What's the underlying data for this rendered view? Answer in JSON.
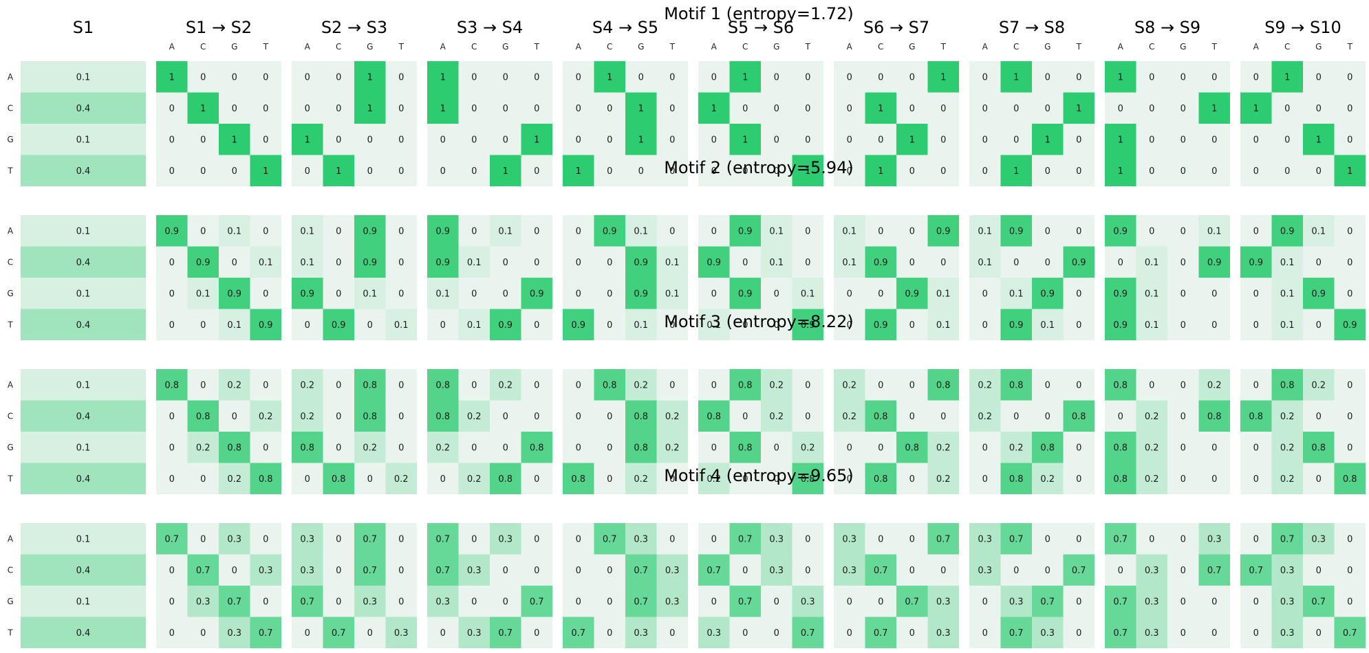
{
  "chart_data": {
    "type": "heatmap",
    "nucleotides": [
      "A",
      "C",
      "G",
      "T"
    ],
    "panel_titles": [
      "S1",
      "S1 → S2",
      "S2 → S3",
      "S3 → S4",
      "S4 → S5",
      "S5 → S6",
      "S6 → S7",
      "S7 → S8",
      "S8 → S9",
      "S9 → S10"
    ],
    "colors": {
      "low": "#eaf4ee",
      "high": "#2ecc71"
    },
    "motifs": [
      {
        "title": "Motif 1 (entropy=1.72)",
        "initial": [
          0.1,
          0.4,
          0.1,
          0.4
        ],
        "transitions": [
          [
            [
              1,
              0,
              0,
              0
            ],
            [
              0,
              1,
              0,
              0
            ],
            [
              0,
              0,
              1,
              0
            ],
            [
              0,
              0,
              0,
              1
            ]
          ],
          [
            [
              0,
              0,
              1,
              0
            ],
            [
              0,
              0,
              1,
              0
            ],
            [
              1,
              0,
              0,
              0
            ],
            [
              0,
              1,
              0,
              0
            ]
          ],
          [
            [
              1,
              0,
              0,
              0
            ],
            [
              1,
              0,
              0,
              0
            ],
            [
              0,
              0,
              0,
              1
            ],
            [
              0,
              0,
              1,
              0
            ]
          ],
          [
            [
              0,
              1,
              0,
              0
            ],
            [
              0,
              0,
              1,
              0
            ],
            [
              0,
              0,
              1,
              0
            ],
            [
              1,
              0,
              0,
              0
            ]
          ],
          [
            [
              0,
              1,
              0,
              0
            ],
            [
              1,
              0,
              0,
              0
            ],
            [
              0,
              1,
              0,
              0
            ],
            [
              0,
              0,
              0,
              1
            ]
          ],
          [
            [
              0,
              0,
              0,
              1
            ],
            [
              0,
              1,
              0,
              0
            ],
            [
              0,
              0,
              1,
              0
            ],
            [
              0,
              1,
              0,
              0
            ]
          ],
          [
            [
              0,
              1,
              0,
              0
            ],
            [
              0,
              0,
              0,
              1
            ],
            [
              0,
              0,
              1,
              0
            ],
            [
              0,
              1,
              0,
              0
            ]
          ],
          [
            [
              1,
              0,
              0,
              0
            ],
            [
              0,
              0,
              0,
              1
            ],
            [
              1,
              0,
              0,
              0
            ],
            [
              1,
              0,
              0,
              0
            ]
          ],
          [
            [
              0,
              1,
              0,
              0
            ],
            [
              1,
              0,
              0,
              0
            ],
            [
              0,
              0,
              1,
              0
            ],
            [
              0,
              0,
              0,
              1
            ]
          ]
        ]
      },
      {
        "title": "Motif 2 (entropy=5.94)",
        "initial": [
          0.1,
          0.4,
          0.1,
          0.4
        ],
        "transitions": [
          [
            [
              0.9,
              0,
              0.1,
              0
            ],
            [
              0,
              0.9,
              0,
              0.1
            ],
            [
              0,
              0.1,
              0.9,
              0
            ],
            [
              0,
              0,
              0.1,
              0.9
            ]
          ],
          [
            [
              0.1,
              0,
              0.9,
              0
            ],
            [
              0.1,
              0,
              0.9,
              0
            ],
            [
              0.9,
              0,
              0.1,
              0
            ],
            [
              0,
              0.9,
              0,
              0.1
            ]
          ],
          [
            [
              0.9,
              0,
              0.1,
              0
            ],
            [
              0.9,
              0.1,
              0,
              0
            ],
            [
              0.1,
              0,
              0,
              0.9
            ],
            [
              0,
              0.1,
              0.9,
              0
            ]
          ],
          [
            [
              0,
              0.9,
              0.1,
              0
            ],
            [
              0,
              0,
              0.9,
              0.1
            ],
            [
              0,
              0,
              0.9,
              0.1
            ],
            [
              0.9,
              0,
              0.1,
              0
            ]
          ],
          [
            [
              0,
              0.9,
              0.1,
              0
            ],
            [
              0.9,
              0,
              0.1,
              0
            ],
            [
              0,
              0.9,
              0,
              0.1
            ],
            [
              0.1,
              0,
              0,
              0.9
            ]
          ],
          [
            [
              0.1,
              0,
              0,
              0.9
            ],
            [
              0.1,
              0.9,
              0,
              0
            ],
            [
              0,
              0,
              0.9,
              0.1
            ],
            [
              0,
              0.9,
              0,
              0.1
            ]
          ],
          [
            [
              0.1,
              0.9,
              0,
              0
            ],
            [
              0.1,
              0,
              0,
              0.9
            ],
            [
              0,
              0.1,
              0.9,
              0
            ],
            [
              0,
              0.9,
              0.1,
              0
            ]
          ],
          [
            [
              0.9,
              0,
              0,
              0.1
            ],
            [
              0,
              0.1,
              0,
              0.9
            ],
            [
              0.9,
              0.1,
              0,
              0
            ],
            [
              0.9,
              0.1,
              0,
              0
            ]
          ],
          [
            [
              0,
              0.9,
              0.1,
              0
            ],
            [
              0.9,
              0.1,
              0,
              0
            ],
            [
              0,
              0.1,
              0.9,
              0
            ],
            [
              0,
              0.1,
              0,
              0.9
            ]
          ]
        ]
      },
      {
        "title": "Motif 3 (entropy=8.22)",
        "initial": [
          0.1,
          0.4,
          0.1,
          0.4
        ],
        "transitions": [
          [
            [
              0.8,
              0,
              0.2,
              0
            ],
            [
              0,
              0.8,
              0,
              0.2
            ],
            [
              0,
              0.2,
              0.8,
              0
            ],
            [
              0,
              0,
              0.2,
              0.8
            ]
          ],
          [
            [
              0.2,
              0,
              0.8,
              0
            ],
            [
              0.2,
              0,
              0.8,
              0
            ],
            [
              0.8,
              0,
              0.2,
              0
            ],
            [
              0,
              0.8,
              0,
              0.2
            ]
          ],
          [
            [
              0.8,
              0,
              0.2,
              0
            ],
            [
              0.8,
              0.2,
              0,
              0
            ],
            [
              0.2,
              0,
              0,
              0.8
            ],
            [
              0,
              0.2,
              0.8,
              0
            ]
          ],
          [
            [
              0,
              0.8,
              0.2,
              0
            ],
            [
              0,
              0,
              0.8,
              0.2
            ],
            [
              0,
              0,
              0.8,
              0.2
            ],
            [
              0.8,
              0,
              0.2,
              0
            ]
          ],
          [
            [
              0,
              0.8,
              0.2,
              0
            ],
            [
              0.8,
              0,
              0.2,
              0
            ],
            [
              0,
              0.8,
              0,
              0.2
            ],
            [
              0.2,
              0,
              0,
              0.8
            ]
          ],
          [
            [
              0.2,
              0,
              0,
              0.8
            ],
            [
              0.2,
              0.8,
              0,
              0
            ],
            [
              0,
              0,
              0.8,
              0.2
            ],
            [
              0,
              0.8,
              0,
              0.2
            ]
          ],
          [
            [
              0.2,
              0.8,
              0,
              0
            ],
            [
              0.2,
              0,
              0,
              0.8
            ],
            [
              0,
              0.2,
              0.8,
              0
            ],
            [
              0,
              0.8,
              0.2,
              0
            ]
          ],
          [
            [
              0.8,
              0,
              0,
              0.2
            ],
            [
              0,
              0.2,
              0,
              0.8
            ],
            [
              0.8,
              0.2,
              0,
              0
            ],
            [
              0.8,
              0.2,
              0,
              0
            ]
          ],
          [
            [
              0,
              0.8,
              0.2,
              0
            ],
            [
              0.8,
              0.2,
              0,
              0
            ],
            [
              0,
              0.2,
              0.8,
              0
            ],
            [
              0,
              0.2,
              0,
              0.8
            ]
          ]
        ]
      },
      {
        "title": "Motif 4 (entropy=9.65)",
        "initial": [
          0.1,
          0.4,
          0.1,
          0.4
        ],
        "transitions": [
          [
            [
              0.7,
              0,
              0.3,
              0
            ],
            [
              0,
              0.7,
              0,
              0.3
            ],
            [
              0,
              0.3,
              0.7,
              0
            ],
            [
              0,
              0,
              0.3,
              0.7
            ]
          ],
          [
            [
              0.3,
              0,
              0.7,
              0
            ],
            [
              0.3,
              0,
              0.7,
              0
            ],
            [
              0.7,
              0,
              0.3,
              0
            ],
            [
              0,
              0.7,
              0,
              0.3
            ]
          ],
          [
            [
              0.7,
              0,
              0.3,
              0
            ],
            [
              0.7,
              0.3,
              0,
              0
            ],
            [
              0.3,
              0,
              0,
              0.7
            ],
            [
              0,
              0.3,
              0.7,
              0
            ]
          ],
          [
            [
              0,
              0.7,
              0.3,
              0
            ],
            [
              0,
              0,
              0.7,
              0.3
            ],
            [
              0,
              0,
              0.7,
              0.3
            ],
            [
              0.7,
              0,
              0.3,
              0
            ]
          ],
          [
            [
              0,
              0.7,
              0.3,
              0
            ],
            [
              0.7,
              0,
              0.3,
              0
            ],
            [
              0,
              0.7,
              0,
              0.3
            ],
            [
              0.3,
              0,
              0,
              0.7
            ]
          ],
          [
            [
              0.3,
              0,
              0,
              0.7
            ],
            [
              0.3,
              0.7,
              0,
              0
            ],
            [
              0,
              0,
              0.7,
              0.3
            ],
            [
              0,
              0.7,
              0,
              0.3
            ]
          ],
          [
            [
              0.3,
              0.7,
              0,
              0
            ],
            [
              0.3,
              0,
              0,
              0.7
            ],
            [
              0,
              0.3,
              0.7,
              0
            ],
            [
              0,
              0.7,
              0.3,
              0
            ]
          ],
          [
            [
              0.7,
              0,
              0,
              0.3
            ],
            [
              0,
              0.3,
              0,
              0.7
            ],
            [
              0.7,
              0.3,
              0,
              0
            ],
            [
              0.7,
              0.3,
              0,
              0
            ]
          ],
          [
            [
              0,
              0.7,
              0.3,
              0
            ],
            [
              0.7,
              0.3,
              0,
              0
            ],
            [
              0,
              0.3,
              0.7,
              0
            ],
            [
              0,
              0.3,
              0,
              0.7
            ]
          ]
        ]
      }
    ]
  }
}
